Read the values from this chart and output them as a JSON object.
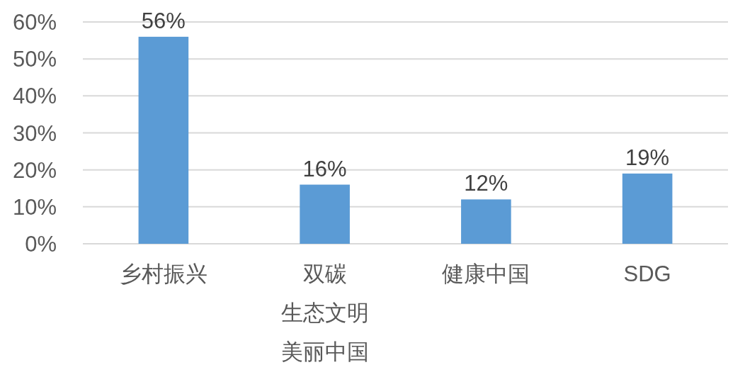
{
  "chart_data": {
    "type": "bar",
    "categories": [
      "乡村振兴",
      "双碳生态文明美丽中国",
      "健康中国",
      "SDG"
    ],
    "values": [
      56,
      16,
      12,
      19
    ],
    "color": "#5b9bd5",
    "value_labels": [
      "56%",
      "16%",
      "12%",
      "19%"
    ],
    "ylim": [
      0,
      60
    ],
    "yticks": [
      {
        "value": 0,
        "label": "0%"
      },
      {
        "value": 10,
        "label": "10%"
      },
      {
        "value": 20,
        "label": "20%"
      },
      {
        "value": 30,
        "label": "30%"
      },
      {
        "value": 40,
        "label": "40%"
      },
      {
        "value": 50,
        "label": "50%"
      },
      {
        "value": 60,
        "label": "60%"
      }
    ],
    "grid": "y"
  }
}
